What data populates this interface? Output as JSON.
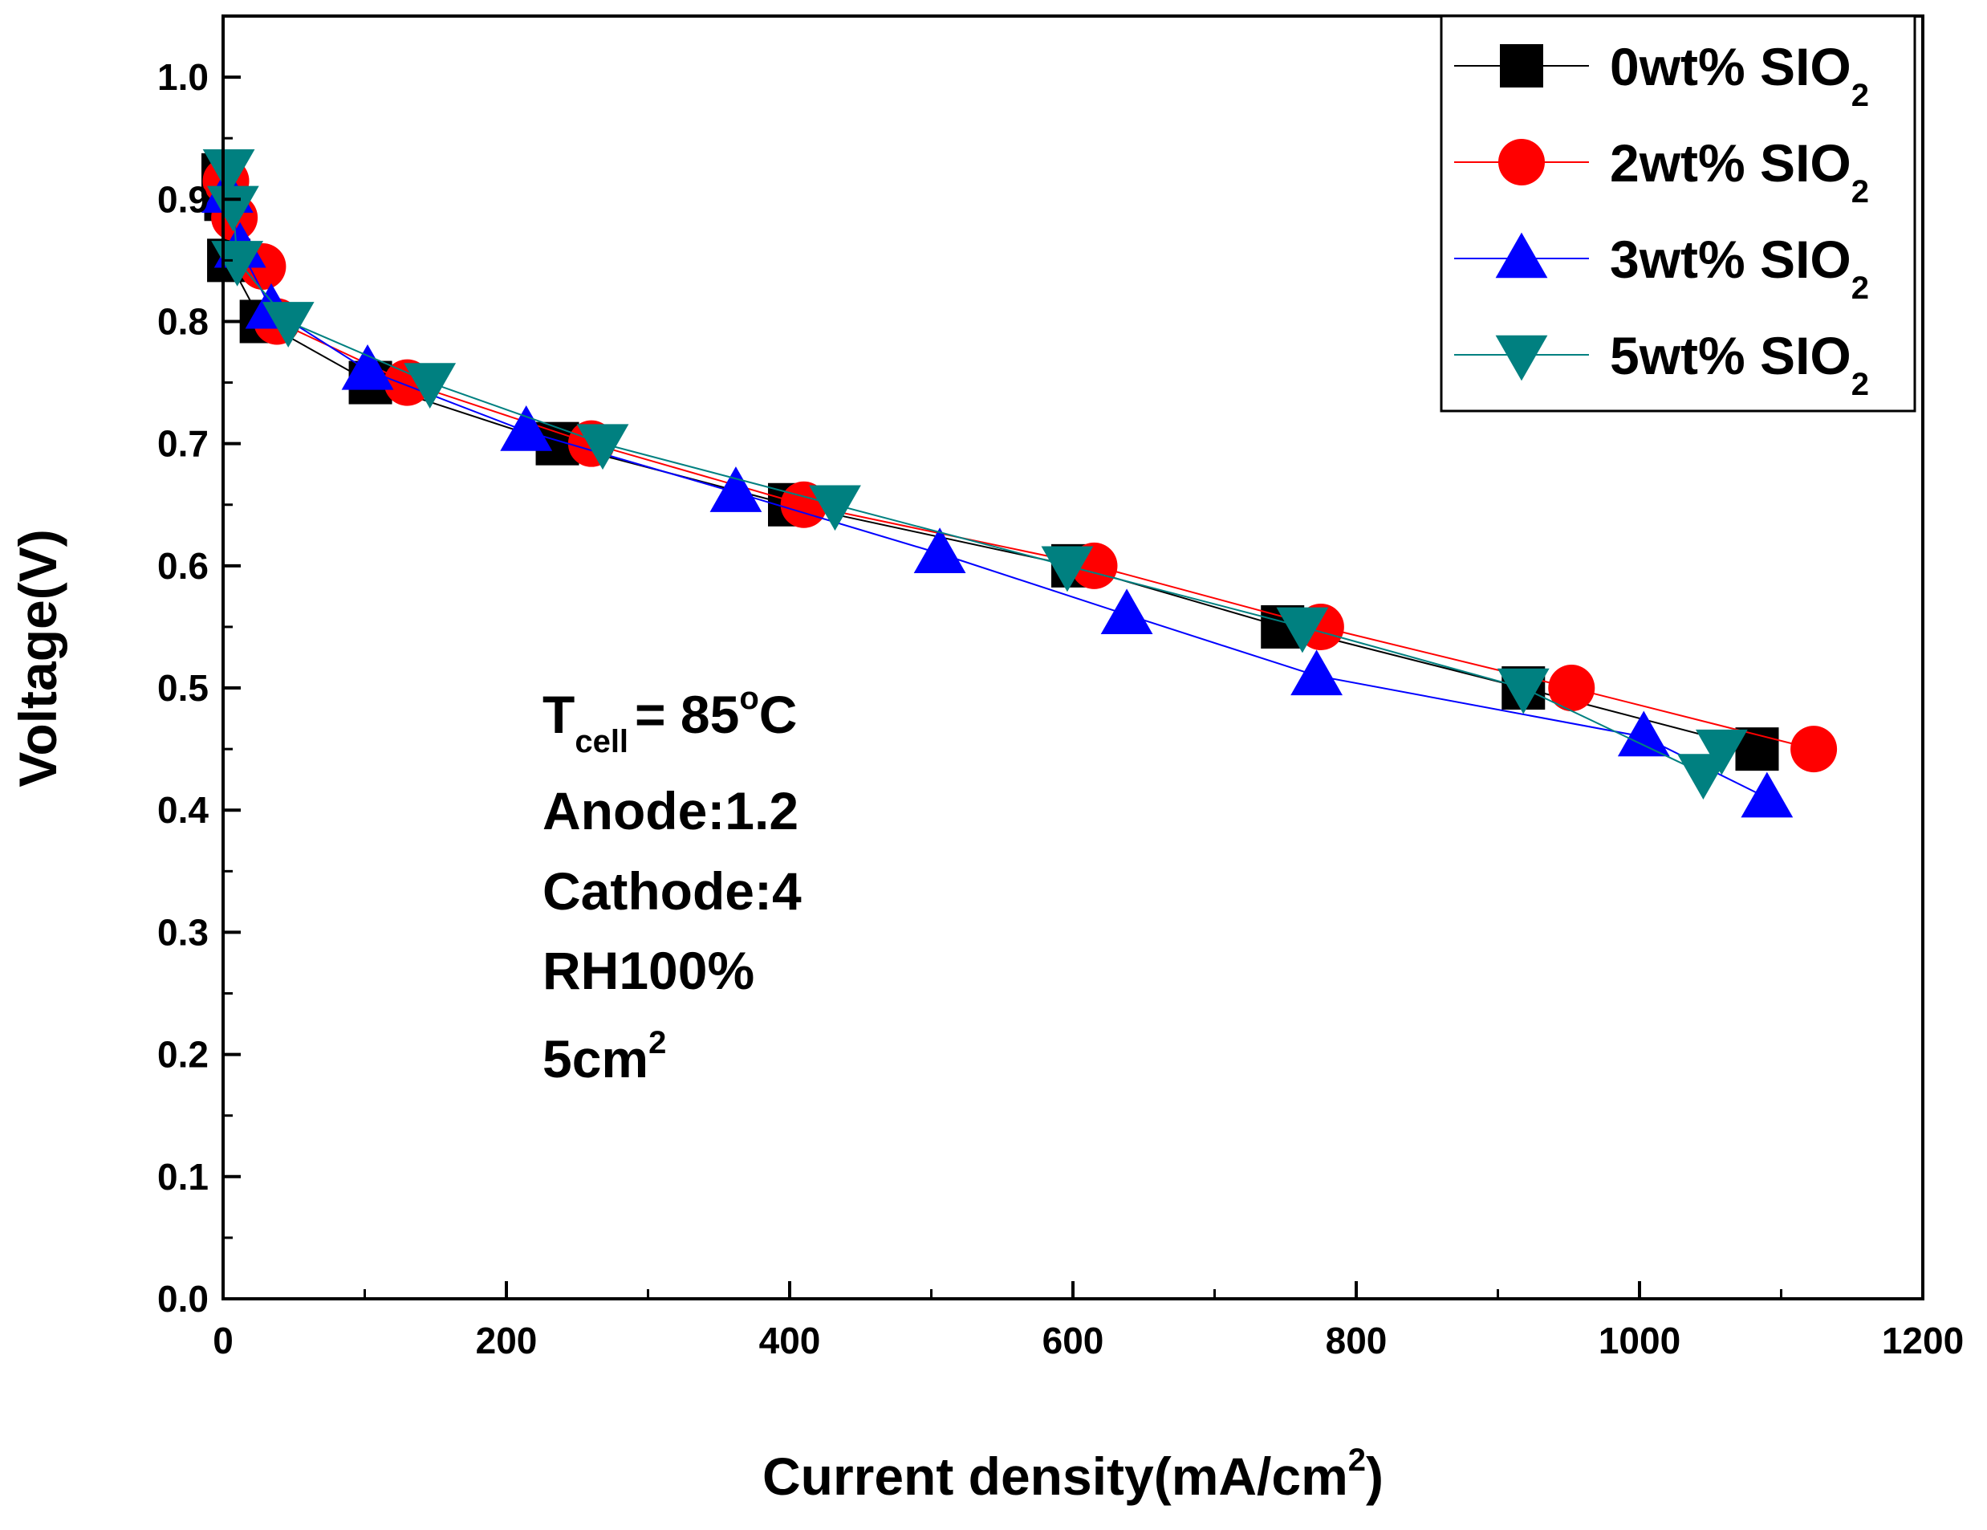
{
  "chart_data": {
    "type": "line",
    "title": "",
    "xlabel": "Current density(mA/cm",
    "xlabel_sup": "2",
    "xlabel_close": ")",
    "ylabel": "Voltage(V)",
    "xlim": [
      0,
      1200
    ],
    "ylim": [
      0,
      1.05
    ],
    "xticks": [
      0,
      200,
      400,
      600,
      800,
      1000,
      1200
    ],
    "xtick_labels": [
      "0",
      "200",
      "400",
      "600",
      "800",
      "1000",
      "1200"
    ],
    "yticks": [
      0.0,
      0.1,
      0.2,
      0.3,
      0.4,
      0.5,
      0.6,
      0.7,
      0.8,
      0.9,
      1.0
    ],
    "ytick_labels": [
      "0.0",
      "0.1",
      "0.2",
      "0.3",
      "0.4",
      "0.5",
      "0.6",
      "0.7",
      "0.8",
      "0.9",
      "1.0"
    ],
    "grid": false,
    "legend_position": "top-right",
    "series": [
      {
        "name": "0wt% SIO",
        "name_sub": "2",
        "color": "#000000",
        "marker": "square",
        "x": [
          0,
          2,
          4,
          27,
          104,
          236,
          400,
          600,
          748,
          918,
          1083
        ],
        "y": [
          0.92,
          0.9,
          0.85,
          0.8,
          0.75,
          0.7,
          0.65,
          0.6,
          0.55,
          0.5,
          0.45
        ]
      },
      {
        "name": "2wt% SIO",
        "name_sub": "2",
        "color": "#ff0000",
        "marker": "circle",
        "x": [
          2,
          8,
          28,
          38,
          130,
          260,
          410,
          615,
          775,
          952,
          1123
        ],
        "y": [
          0.915,
          0.885,
          0.845,
          0.8,
          0.75,
          0.7,
          0.65,
          0.6,
          0.55,
          0.5,
          0.45
        ]
      },
      {
        "name": "3wt% SIO",
        "name_sub": "2",
        "color": "#0000ff",
        "marker": "triangle-up",
        "x": [
          3,
          12,
          34,
          102,
          214,
          362,
          506,
          638,
          772,
          1003,
          1090
        ],
        "y": [
          0.905,
          0.86,
          0.81,
          0.76,
          0.71,
          0.66,
          0.61,
          0.56,
          0.51,
          0.46,
          0.41
        ]
      },
      {
        "name": "5wt% SIO",
        "name_sub": "2",
        "color": "#008080",
        "marker": "triangle-down",
        "x": [
          4,
          7,
          10,
          46,
          146,
          268,
          432,
          596,
          762,
          918,
          1045,
          1058
        ],
        "y": [
          0.925,
          0.895,
          0.85,
          0.8,
          0.75,
          0.7,
          0.65,
          0.6,
          0.55,
          0.5,
          0.43,
          0.45
        ]
      }
    ],
    "annotations": {
      "temp_main": "T",
      "temp_sub": "cell",
      "temp_value": "= 85",
      "temp_deg": "o",
      "temp_unit": "C",
      "anode": "Anode:1.2",
      "cathode": "Cathode:4",
      "rh": "RH100%",
      "area": "5cm",
      "area_sup": "2"
    }
  }
}
